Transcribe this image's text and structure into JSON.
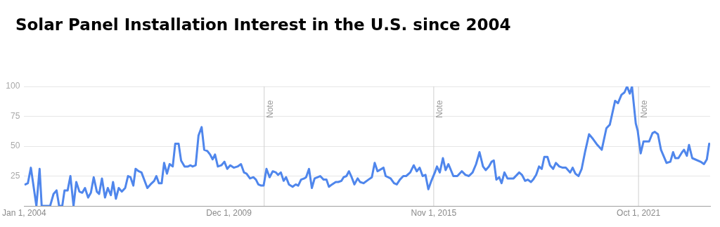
{
  "chart_data": {
    "type": "line",
    "title": "Solar Panel Installation Interest in the U.S. since 2004",
    "x": [
      "2004-01-14",
      "2004-02-09",
      "2004-03-12",
      "2004-05-09",
      "2004-06-12",
      "2004-07-04",
      "2004-10-01",
      "2004-11-06",
      "2004-12-08",
      "2005-01-04",
      "2005-02-06",
      "2005-03-02",
      "2005-04-04",
      "2005-05-03",
      "2005-06-05",
      "2005-07-04",
      "2005-08-06",
      "2005-09-05",
      "2005-10-04",
      "2005-11-06",
      "2005-12-05",
      "2006-01-04",
      "2006-02-06",
      "2006-03-02",
      "2006-04-01",
      "2006-05-03",
      "2006-06-02",
      "2006-07-04",
      "2006-07-27",
      "2006-08-26",
      "2006-09-25",
      "2006-10-27",
      "2006-12-02",
      "2007-01-01",
      "2007-01-27",
      "2007-02-26",
      "2007-03-22",
      "2007-04-24",
      "2007-05-23",
      "2007-07-24",
      "2007-08-26",
      "2007-10-04",
      "2007-10-27",
      "2007-11-23",
      "2007-12-22",
      "2008-01-17",
      "2008-02-16",
      "2008-03-15",
      "2008-04-17",
      "2008-05-13",
      "2008-06-18",
      "2008-07-14",
      "2008-08-20",
      "2008-09-25",
      "2008-10-21",
      "2008-11-13",
      "2008-12-15",
      "2009-01-14",
      "2009-02-16",
      "2009-03-15",
      "2009-04-17",
      "2009-05-16",
      "2009-06-12",
      "2009-07-07",
      "2009-08-06",
      "2009-09-12",
      "2009-10-14",
      "2009-11-13",
      "2009-12-15",
      "2010-01-21",
      "2010-03-02",
      "2010-04-07",
      "2010-05-09",
      "2010-06-05",
      "2010-07-11",
      "2010-08-16",
      "2010-09-12",
      "2010-10-07",
      "2010-11-06",
      "2010-12-02",
      "2011-01-01",
      "2011-02-03",
      "2011-03-08",
      "2011-04-11",
      "2011-05-03",
      "2011-06-02",
      "2011-07-01",
      "2011-07-27",
      "2011-08-26",
      "2011-10-04",
      "2011-11-06",
      "2011-12-02",
      "2012-01-01",
      "2012-02-03",
      "2012-02-23",
      "2012-03-25",
      "2012-04-24",
      "2012-05-23",
      "2012-06-25",
      "2012-07-21",
      "2012-08-26",
      "2012-09-25",
      "2012-10-21",
      "2012-11-23",
      "2013-01-01",
      "2013-01-27",
      "2013-03-02",
      "2013-03-25",
      "2013-04-24",
      "2013-05-20",
      "2013-06-18",
      "2013-07-17",
      "2013-08-20",
      "2013-09-15",
      "2013-10-21",
      "2013-12-12",
      "2014-01-17",
      "2014-02-16",
      "2014-03-18",
      "2014-05-20",
      "2014-06-12",
      "2014-08-03",
      "2014-09-08",
      "2014-10-07",
      "2014-11-09",
      "2014-12-15",
      "2015-01-14",
      "2015-02-26",
      "2015-04-04",
      "2015-05-06",
      "2015-06-05",
      "2015-07-07",
      "2015-08-06",
      "2015-09-05",
      "2015-10-07",
      "2015-11-13",
      "2015-12-05",
      "2016-01-04",
      "2016-02-06",
      "2016-03-05",
      "2016-04-04",
      "2016-05-26",
      "2016-07-07",
      "2016-08-23",
      "2016-10-01",
      "2016-11-06",
      "2016-12-15",
      "2017-01-21",
      "2017-02-26",
      "2017-04-04",
      "2017-05-03",
      "2017-06-05",
      "2017-07-04",
      "2017-07-27",
      "2017-08-23",
      "2017-09-22",
      "2017-10-17",
      "2017-11-16",
      "2017-12-18",
      "2018-02-20",
      "2018-04-21",
      "2018-05-20",
      "2018-06-22",
      "2018-07-21",
      "2018-08-23",
      "2018-09-15",
      "2018-10-17",
      "2018-11-16",
      "2018-12-15",
      "2019-01-11",
      "2019-02-13",
      "2019-03-12",
      "2019-04-14",
      "2019-05-13",
      "2019-06-18",
      "2019-07-24",
      "2019-08-26",
      "2019-10-11",
      "2019-11-06",
      "2019-12-05",
      "2020-01-07",
      "2020-02-09",
      "2020-03-18",
      "2020-04-27",
      "2020-06-08",
      "2020-07-24",
      "2020-09-08",
      "2020-10-27",
      "2020-12-02",
      "2021-01-27",
      "2021-02-26",
      "2021-04-04",
      "2021-05-06",
      "2021-06-02",
      "2021-07-01",
      "2021-07-24",
      "2021-09-02",
      "2021-09-22",
      "2021-10-24",
      "2021-11-23",
      "2022-01-21",
      "2022-02-26",
      "2022-03-22",
      "2022-04-24",
      "2022-05-26",
      "2022-07-24",
      "2022-09-02",
      "2022-10-01",
      "2022-10-24",
      "2022-11-26",
      "2023-01-04",
      "2023-01-24",
      "2023-02-23",
      "2023-03-18",
      "2023-04-21",
      "2023-07-17",
      "2023-08-23",
      "2023-09-22",
      "2023-10-17"
    ],
    "series": [
      {
        "color": "#4f86ec",
        "values": [
          18,
          19,
          32,
          0,
          31,
          0,
          0,
          10,
          13,
          0,
          0,
          13,
          13,
          25,
          0,
          20,
          12,
          11,
          15,
          7,
          11,
          24,
          12,
          10,
          23,
          7,
          15,
          9,
          20,
          6,
          15,
          12,
          15,
          25,
          24,
          17,
          31,
          29,
          28,
          15,
          18,
          21,
          25,
          19,
          19,
          36,
          27,
          35,
          33,
          52,
          52,
          38,
          33,
          33,
          34,
          33,
          34,
          59,
          66,
          47,
          46,
          43,
          39,
          43,
          33,
          34,
          37,
          31,
          34,
          32,
          33,
          35,
          28,
          27,
          23,
          24,
          22,
          18,
          17,
          17,
          31,
          24,
          29,
          28,
          26,
          28,
          21,
          24,
          18,
          16,
          18,
          17,
          22,
          23,
          24,
          31,
          15,
          23,
          24,
          25,
          22,
          22,
          16,
          18,
          20,
          20,
          21,
          24,
          25,
          29,
          24,
          18,
          23,
          20,
          19,
          22,
          24,
          36,
          29,
          32,
          25,
          23,
          19,
          18,
          22,
          25,
          25,
          28,
          34,
          29,
          32,
          25,
          26,
          14,
          21,
          28,
          33,
          28,
          40,
          30,
          35,
          25,
          25,
          29,
          26,
          25,
          28,
          35,
          45,
          33,
          30,
          33,
          37,
          38,
          22,
          24,
          19,
          28,
          23,
          23,
          28,
          26,
          21,
          22,
          20,
          22,
          26,
          33,
          31,
          41,
          41,
          34,
          31,
          36,
          33,
          32,
          32,
          28,
          32,
          27,
          25,
          31,
          46,
          60,
          56,
          51,
          47,
          65,
          68,
          88,
          86,
          93,
          95,
          100,
          94,
          100,
          69,
          63,
          44,
          54,
          54,
          61,
          62,
          60,
          47,
          36,
          37,
          45,
          40,
          40,
          45,
          47,
          42,
          51,
          40,
          37,
          35,
          39,
          52
        ]
      }
    ],
    "xlim": [
      "2004-01-01",
      "2023-10-27"
    ],
    "xticks": [
      {
        "value": "2004-01-01",
        "label": "Jan 1, 2004"
      },
      {
        "value": "2009-12-01",
        "label": "Dec 1, 2009"
      },
      {
        "value": "2015-11-01",
        "label": "Nov 1, 2015"
      },
      {
        "value": "2021-10-01",
        "label": "Oct 1, 2021"
      }
    ],
    "ylim": [
      0,
      100
    ],
    "yticks": [
      {
        "value": 0,
        "label": null
      },
      25,
      50,
      75,
      100
    ],
    "grid": "y",
    "legend": false,
    "marker": "none",
    "line_style": "solid",
    "ref_lines": [
      {
        "axis": "x",
        "value": "2010-12-08",
        "label": "Note",
        "color": "#d0d0d0"
      },
      {
        "axis": "x",
        "value": "2015-11-01",
        "label": "Note",
        "color": "#d0d0d0"
      },
      {
        "axis": "x",
        "value": "2021-10-01",
        "label": "Note",
        "color": "#d0d0d0"
      }
    ]
  }
}
